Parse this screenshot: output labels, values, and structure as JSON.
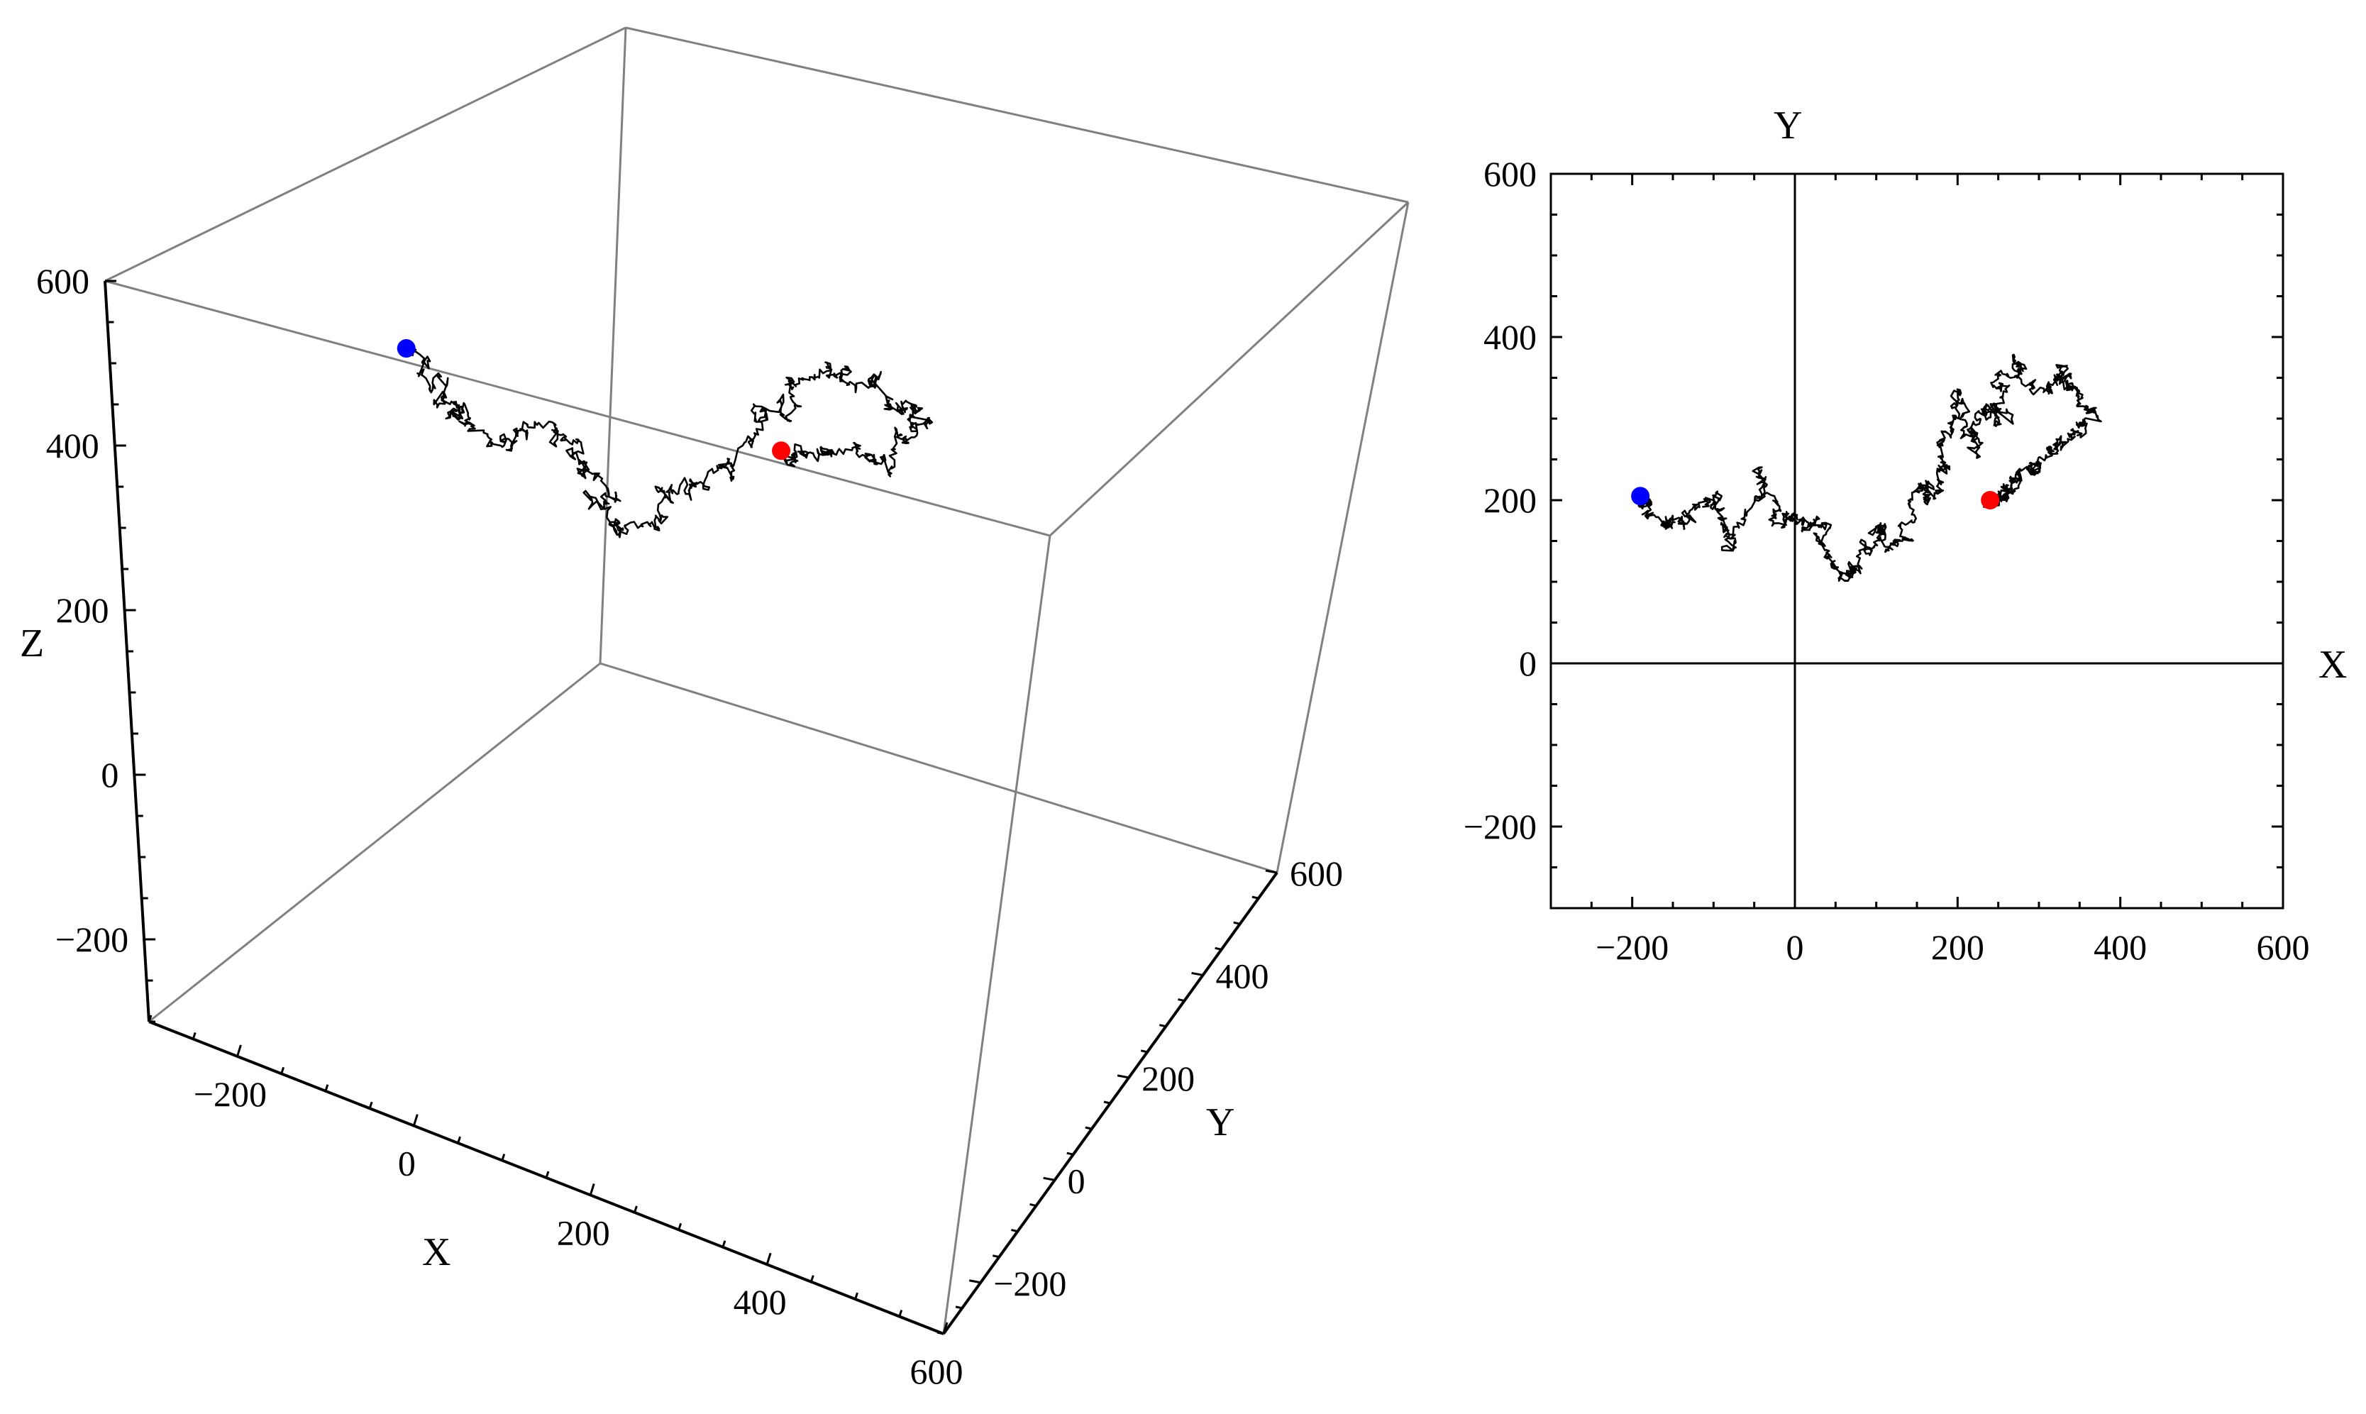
{
  "colors": {
    "walk": "#000000",
    "start_point": "#0000ff",
    "end_point": "#ff0000",
    "box_edge": "#808080",
    "frame": "#000000"
  },
  "chart_data": [
    {
      "type": "line",
      "projection": "3d",
      "title": "",
      "xlabel": "X",
      "ylabel": "Y",
      "zlabel": "Z",
      "xlim": [
        -300,
        600
      ],
      "ylim": [
        -300,
        600
      ],
      "zlim": [
        -300,
        600
      ],
      "x_ticks": [
        -200,
        0,
        200,
        400,
        600
      ],
      "y_ticks": [
        -200,
        0,
        200,
        400,
        600
      ],
      "z_ticks": [
        -200,
        0,
        200,
        400,
        600
      ],
      "x_tick_labels": [
        "−200",
        "0",
        "200",
        "400",
        "600"
      ],
      "y_tick_labels": [
        "−200",
        "0",
        "200",
        "400",
        "600"
      ],
      "z_tick_labels": [
        "−200",
        "0",
        "200",
        "400",
        "600"
      ],
      "grid": false,
      "series": [
        {
          "path_xyz": [
            [
              -190,
              205,
              250
            ],
            [
              -140,
              170,
              240
            ],
            [
              -80,
              140,
              230
            ],
            [
              -20,
              180,
              225
            ],
            [
              30,
              170,
              220
            ],
            [
              80,
              120,
              205
            ],
            [
              130,
              150,
              235
            ],
            [
              170,
              200,
              260
            ],
            [
              220,
              260,
              320
            ],
            [
              250,
              310,
              330
            ],
            [
              300,
              340,
              320
            ],
            [
              350,
              330,
              310
            ],
            [
              330,
              270,
              300
            ],
            [
              280,
              230,
              300
            ],
            [
              240,
              200,
              310
            ]
          ],
          "start": [
            -190,
            205,
            250
          ],
          "end": [
            240,
            200,
            310
          ]
        }
      ]
    },
    {
      "type": "line",
      "projection": "xy",
      "title": "",
      "xlabel": "X",
      "ylabel": "Y",
      "xlim": [
        -300,
        600
      ],
      "ylim": [
        -300,
        600
      ],
      "x_ticks": [
        -200,
        0,
        200,
        400,
        600
      ],
      "y_ticks": [
        -200,
        0,
        200,
        400,
        600
      ],
      "x_tick_labels": [
        "−200",
        "0",
        "200",
        "400",
        "600"
      ],
      "y_tick_labels": [
        "−200",
        "0",
        "200",
        "400",
        "600"
      ],
      "grid": false,
      "axes_through_origin": true,
      "series": [
        {
          "path_xy": [
            [
              -190,
              205
            ],
            [
              -170,
              180
            ],
            [
              -140,
              170
            ],
            [
              -100,
              210
            ],
            [
              -80,
              140
            ],
            [
              -40,
              240
            ],
            [
              -20,
              180
            ],
            [
              0,
              180
            ],
            [
              30,
              170
            ],
            [
              60,
              110
            ],
            [
              80,
              120
            ],
            [
              110,
              170
            ],
            [
              130,
              150
            ],
            [
              150,
              210
            ],
            [
              170,
              200
            ],
            [
              180,
              270
            ],
            [
              200,
              330
            ],
            [
              220,
              260
            ],
            [
              240,
              320
            ],
            [
              250,
              310
            ],
            [
              270,
              370
            ],
            [
              300,
              340
            ],
            [
              330,
              360
            ],
            [
              350,
              330
            ],
            [
              360,
              300
            ],
            [
              330,
              270
            ],
            [
              300,
              240
            ],
            [
              280,
              230
            ],
            [
              260,
              210
            ],
            [
              240,
              200
            ]
          ],
          "start": [
            -190,
            205
          ],
          "end": [
            240,
            200
          ]
        }
      ]
    }
  ]
}
